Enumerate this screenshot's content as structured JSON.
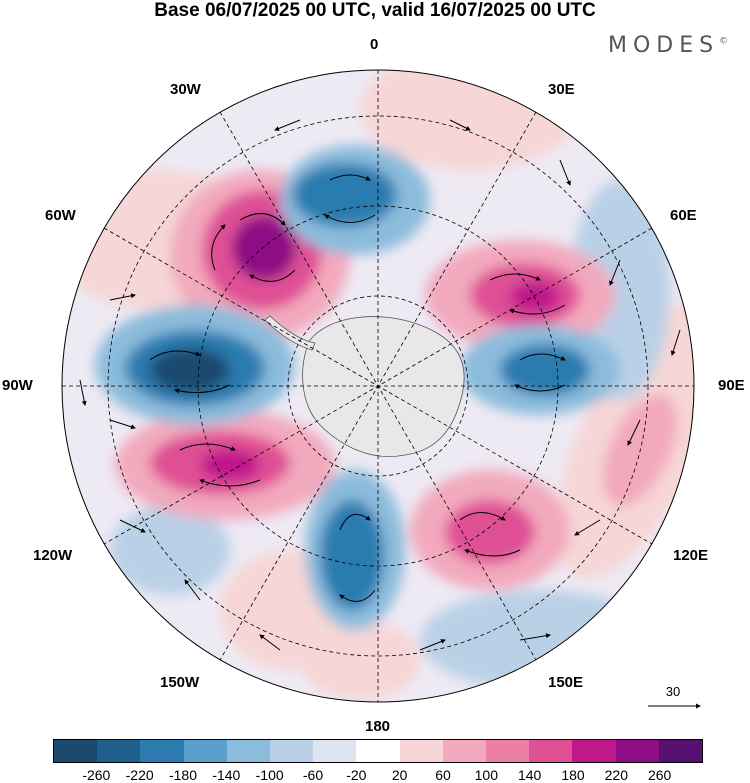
{
  "title": "Base 06/07/2025 00 UTC, valid 16/07/2025 00 UTC",
  "brand": {
    "name": "MODES",
    "mark": "©"
  },
  "longitude_labels": {
    "top": "0",
    "bottom": "180",
    "left": "90W",
    "right": "90E",
    "w30": "30W",
    "e30": "30E",
    "w60": "60W",
    "e60": "60E",
    "w120": "120W",
    "e120": "120E",
    "w150": "150W",
    "e150": "150E"
  },
  "vector_reference": {
    "value": "30"
  },
  "colorbar": {
    "colors": [
      "#1c4a6e",
      "#1f5f8b",
      "#2c7bb0",
      "#5a9fcc",
      "#8bbcdc",
      "#b9d0e6",
      "#dde5f0",
      "#ffffff",
      "#f6d6d6",
      "#f2a9bd",
      "#ec7fa6",
      "#df4f94",
      "#c0188b",
      "#8e0c84",
      "#56106f"
    ],
    "labels": [
      "-260",
      "-220",
      "-180",
      "-140",
      "-100",
      "-60",
      "-20",
      "20",
      "60",
      "100",
      "140",
      "180",
      "220",
      "260"
    ]
  },
  "anomaly_colors": {
    "strong_neg": "#1f5f8b",
    "mid_neg": "#5a9fcc",
    "weak_neg": "#b9d0e6",
    "weak_pos": "#f6d6d6",
    "mid_pos": "#ec7fa6",
    "strong_pos": "#c0188b",
    "max_pos": "#8e0c84",
    "antarctica": "#e8e8e8"
  }
}
